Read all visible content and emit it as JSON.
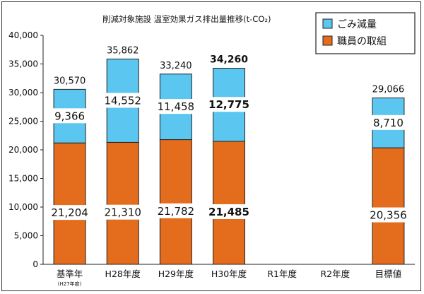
{
  "chart_data": {
    "type": "bar",
    "stacked": true,
    "title": "削減対象施設 温室効果ガス排出量推移(t-CO₂)",
    "categories": [
      "基準年",
      "H28年度",
      "H29年度",
      "H30年度",
      "R1年度",
      "R2年度",
      "目標値"
    ],
    "category_sublabels": [
      "(H27年度)",
      "",
      "",
      "",
      "",
      "",
      ""
    ],
    "ylim": [
      0,
      40000
    ],
    "yticks": [
      "0",
      "5,000",
      "10,000",
      "15,000",
      "20,000",
      "25,000",
      "30,000",
      "35,000",
      "40,000"
    ],
    "grid": false,
    "legend_position": "top-right",
    "series": [
      {
        "name": "職員の取組",
        "color": "#e46c1d",
        "values": [
          21204,
          21310,
          21782,
          21485,
          null,
          null,
          20356
        ],
        "labels": [
          "21,204",
          "21,310",
          "21,782",
          "21,485",
          "",
          "",
          "20,356"
        ]
      },
      {
        "name": "ごみ減量",
        "color": "#5bc6f0",
        "values": [
          9366,
          14552,
          11458,
          12775,
          null,
          null,
          8710
        ],
        "labels": [
          "9,366",
          "14,552",
          "11,458",
          "12,775",
          "",
          "",
          "8,710"
        ]
      }
    ],
    "totals": [
      30570,
      35862,
      33240,
      34260,
      null,
      null,
      29066
    ],
    "total_labels": [
      "30,570",
      "35,862",
      "33,240",
      "34,260",
      "",
      "",
      "29,066"
    ],
    "bold_category_index": 3
  }
}
